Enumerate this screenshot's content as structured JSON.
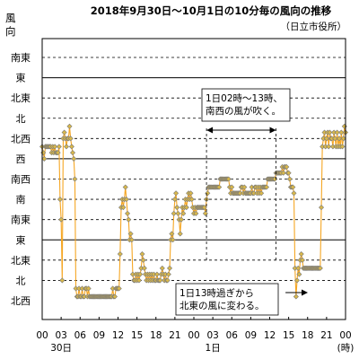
{
  "chart_data": {
    "type": "line",
    "title": "2018年9月30日～10月1日の10分毎の風向の推移",
    "subtitle": "（日立市役所）",
    "ylabel": "風向",
    "xlabel": "(時)",
    "categories": [
      "北西",
      "北",
      "北東",
      "東",
      "南東",
      "南",
      "南西",
      "西",
      "北西",
      "北",
      "北東",
      "東",
      "南東"
    ],
    "x_tick_labels": [
      "00",
      "03",
      "06",
      "09",
      "12",
      "15",
      "18",
      "21",
      "00",
      "03",
      "06",
      "09",
      "12",
      "15",
      "18",
      "21",
      "00"
    ],
    "x_day_labels": [
      {
        "label": "30日",
        "x": 3
      },
      {
        "label": "1日",
        "x": 27
      }
    ],
    "x_range": [
      0,
      48
    ],
    "x_unit_note": "x = hours from 2018-09-30 00:00; y = direction index 0 (北西, bottom) … 12 (南東, top), fractional = intermediate direction",
    "solid_gridlines_at": [
      3,
      7,
      11
    ],
    "dashed_gridlines_at": [
      1,
      2,
      4,
      5,
      6,
      8,
      9,
      10,
      12
    ],
    "series": [
      {
        "name": "風向",
        "color": "#f5a623",
        "marker_fill": "#d9b84a",
        "marker_stroke": "#7a7a7a",
        "points": [
          [
            0,
            7.6
          ],
          [
            0.17,
            7.3
          ],
          [
            0.33,
            7.0
          ],
          [
            0.5,
            7.6
          ],
          [
            0.67,
            7.6
          ],
          [
            0.83,
            7.6
          ],
          [
            1,
            7.6
          ],
          [
            1.17,
            7.6
          ],
          [
            1.33,
            7.6
          ],
          [
            1.5,
            7.3
          ],
          [
            1.67,
            7.6
          ],
          [
            1.83,
            7.3
          ],
          [
            2,
            7.6
          ],
          [
            2.17,
            7.3
          ],
          [
            2.33,
            7.3
          ],
          [
            2.5,
            7.3
          ],
          [
            2.67,
            7.6
          ],
          [
            2.83,
            5.0
          ],
          [
            3,
            4.0
          ],
          [
            3.17,
            1.0
          ],
          [
            3.33,
            8.0
          ],
          [
            3.5,
            8.3
          ],
          [
            3.67,
            8.0
          ],
          [
            3.83,
            7.6
          ],
          [
            4,
            8.0
          ],
          [
            4.17,
            8.0
          ],
          [
            4.33,
            8.6
          ],
          [
            4.5,
            8.0
          ],
          [
            4.67,
            7.6
          ],
          [
            4.83,
            7.3
          ],
          [
            5,
            7.0
          ],
          [
            5.17,
            6.0
          ],
          [
            5.33,
            0.6
          ],
          [
            5.5,
            0.2
          ],
          [
            5.67,
            0.2
          ],
          [
            5.83,
            0.6
          ],
          [
            6,
            0.2
          ],
          [
            6.17,
            0.2
          ],
          [
            6.33,
            0.6
          ],
          [
            6.5,
            0.2
          ],
          [
            6.67,
            0.2
          ],
          [
            6.83,
            0.6
          ],
          [
            7,
            0.6
          ],
          [
            7.17,
            0.2
          ],
          [
            7.33,
            0.6
          ],
          [
            7.5,
            0.2
          ],
          [
            7.67,
            0.2
          ],
          [
            7.83,
            0.2
          ],
          [
            8,
            0.2
          ],
          [
            8.17,
            0.2
          ],
          [
            8.33,
            0.2
          ],
          [
            8.5,
            0.2
          ],
          [
            8.67,
            0.2
          ],
          [
            8.83,
            0.2
          ],
          [
            9,
            0.2
          ],
          [
            9.17,
            0.2
          ],
          [
            9.33,
            0.2
          ],
          [
            9.5,
            0.2
          ],
          [
            9.67,
            0.2
          ],
          [
            9.83,
            0.2
          ],
          [
            10,
            0.2
          ],
          [
            10.17,
            0.2
          ],
          [
            10.33,
            0.2
          ],
          [
            10.5,
            0.2
          ],
          [
            10.67,
            0.2
          ],
          [
            10.83,
            0.2
          ],
          [
            11,
            0.2
          ],
          [
            11.17,
            0.6
          ],
          [
            11.33,
            0.2
          ],
          [
            11.5,
            0.2
          ],
          [
            11.67,
            0.6
          ],
          [
            11.83,
            0.6
          ],
          [
            12,
            0.6
          ],
          [
            12.17,
            0.6
          ],
          [
            12.33,
            2.3
          ],
          [
            12.5,
            4.6
          ],
          [
            12.67,
            5.0
          ],
          [
            12.83,
            4.6
          ],
          [
            13,
            5.0
          ],
          [
            13.17,
            5.6
          ],
          [
            13.33,
            5.0
          ],
          [
            13.5,
            4.3
          ],
          [
            13.67,
            4.0
          ],
          [
            13.83,
            3.0
          ],
          [
            14,
            3.3
          ],
          [
            14.17,
            3.0
          ],
          [
            14.33,
            1.3
          ],
          [
            14.5,
            1.0
          ],
          [
            14.67,
            1.0
          ],
          [
            14.83,
            1.3
          ],
          [
            15,
            1.0
          ],
          [
            15.17,
            1.3
          ],
          [
            15.33,
            1.0
          ],
          [
            15.5,
            1.3
          ],
          [
            15.67,
            1.6
          ],
          [
            15.83,
            2.3
          ],
          [
            16,
            2.0
          ],
          [
            16.17,
            1.6
          ],
          [
            16.33,
            1.3
          ],
          [
            16.5,
            1.0
          ],
          [
            16.67,
            1.3
          ],
          [
            16.83,
            1.0
          ],
          [
            17,
            1.3
          ],
          [
            17.17,
            1.0
          ],
          [
            17.33,
            1.3
          ],
          [
            17.5,
            1.0
          ],
          [
            17.67,
            1.3
          ],
          [
            17.83,
            1.0
          ],
          [
            18,
            1.0
          ],
          [
            18.17,
            1.3
          ],
          [
            18.33,
            1.0
          ],
          [
            18.5,
            1.0
          ],
          [
            18.67,
            1.0
          ],
          [
            18.83,
            1.3
          ],
          [
            19,
            1.6
          ],
          [
            19.17,
            1.3
          ],
          [
            19.33,
            1.0
          ],
          [
            19.5,
            1.3
          ],
          [
            19.67,
            1.0
          ],
          [
            19.83,
            1.0
          ],
          [
            20,
            1.3
          ],
          [
            20.17,
            1.6
          ],
          [
            20.33,
            3.0
          ],
          [
            20.5,
            3.3
          ],
          [
            20.67,
            3.0
          ],
          [
            20.83,
            4.3
          ],
          [
            21,
            5.0
          ],
          [
            21.17,
            5.3
          ],
          [
            21.33,
            4.6
          ],
          [
            21.5,
            4.3
          ],
          [
            21.67,
            4.0
          ],
          [
            21.83,
            3.3
          ],
          [
            22,
            4.0
          ],
          [
            22.17,
            4.6
          ],
          [
            22.33,
            4.3
          ],
          [
            22.5,
            4.6
          ],
          [
            22.67,
            5.0
          ],
          [
            22.83,
            4.6
          ],
          [
            23,
            5.0
          ],
          [
            23.17,
            5.3
          ],
          [
            23.33,
            5.0
          ],
          [
            23.5,
            5.3
          ],
          [
            23.67,
            5.0
          ],
          [
            23.83,
            4.6
          ],
          [
            24,
            4.3
          ],
          [
            24.17,
            4.6
          ],
          [
            24.33,
            4.3
          ],
          [
            24.5,
            4.6
          ],
          [
            24.67,
            4.6
          ],
          [
            24.83,
            4.6
          ],
          [
            25,
            4.6
          ],
          [
            25.17,
            4.6
          ],
          [
            25.33,
            4.6
          ],
          [
            25.5,
            4.6
          ],
          [
            25.67,
            4.6
          ],
          [
            25.83,
            4.3
          ],
          [
            26,
            5.0
          ],
          [
            26.17,
            5.3
          ],
          [
            26.33,
            5.6
          ],
          [
            26.5,
            5.6
          ],
          [
            26.67,
            5.6
          ],
          [
            26.83,
            5.6
          ],
          [
            27,
            5.6
          ],
          [
            27.17,
            5.6
          ],
          [
            27.33,
            5.6
          ],
          [
            27.5,
            5.6
          ],
          [
            27.67,
            5.6
          ],
          [
            27.83,
            5.6
          ],
          [
            28,
            5.6
          ],
          [
            28.17,
            6.0
          ],
          [
            28.33,
            6.0
          ],
          [
            28.5,
            6.0
          ],
          [
            28.67,
            6.0
          ],
          [
            28.83,
            6.0
          ],
          [
            29,
            6.0
          ],
          [
            29.17,
            6.0
          ],
          [
            29.33,
            6.0
          ],
          [
            29.5,
            6.0
          ],
          [
            29.67,
            5.6
          ],
          [
            29.83,
            5.3
          ],
          [
            30,
            5.6
          ],
          [
            30.17,
            5.3
          ],
          [
            30.33,
            5.3
          ],
          [
            30.5,
            5.3
          ],
          [
            30.67,
            5.3
          ],
          [
            30.83,
            5.3
          ],
          [
            31,
            5.3
          ],
          [
            31.17,
            5.3
          ],
          [
            31.33,
            5.3
          ],
          [
            31.5,
            5.6
          ],
          [
            31.67,
            5.6
          ],
          [
            31.83,
            5.3
          ],
          [
            32,
            5.6
          ],
          [
            32.17,
            5.3
          ],
          [
            32.33,
            5.3
          ],
          [
            32.5,
            5.3
          ],
          [
            32.67,
            5.3
          ],
          [
            32.83,
            5.3
          ],
          [
            33,
            5.3
          ],
          [
            33.17,
            5.6
          ],
          [
            33.33,
            5.3
          ],
          [
            33.5,
            5.3
          ],
          [
            33.67,
            5.6
          ],
          [
            33.83,
            5.6
          ],
          [
            34,
            5.3
          ],
          [
            34.17,
            5.6
          ],
          [
            34.33,
            5.3
          ],
          [
            34.5,
            5.6
          ],
          [
            34.67,
            5.3
          ],
          [
            34.83,
            5.6
          ],
          [
            35,
            5.6
          ],
          [
            35.17,
            5.6
          ],
          [
            35.33,
            5.6
          ],
          [
            35.5,
            5.6
          ],
          [
            35.67,
            6.0
          ],
          [
            35.83,
            6.0
          ],
          [
            36,
            6.0
          ],
          [
            36.17,
            6.0
          ],
          [
            36.33,
            6.0
          ],
          [
            36.5,
            6.0
          ],
          [
            36.67,
            6.0
          ],
          [
            36.83,
            6.0
          ],
          [
            37,
            6.3
          ],
          [
            37.17,
            6.3
          ],
          [
            37.33,
            6.3
          ],
          [
            37.5,
            6.3
          ],
          [
            37.67,
            6.3
          ],
          [
            37.83,
            6.3
          ],
          [
            38,
            6.6
          ],
          [
            38.17,
            6.3
          ],
          [
            38.33,
            6.6
          ],
          [
            38.5,
            6.6
          ],
          [
            38.67,
            6.6
          ],
          [
            38.83,
            6.3
          ],
          [
            39,
            6.3
          ],
          [
            39.17,
            6.0
          ],
          [
            39.33,
            5.6
          ],
          [
            39.5,
            5.6
          ],
          [
            39.67,
            5.6
          ],
          [
            39.83,
            5.3
          ],
          [
            40,
            1.6
          ],
          [
            40.17,
            0.2
          ],
          [
            40.33,
            1.0
          ],
          [
            40.5,
            1.6
          ],
          [
            40.67,
            1.3
          ],
          [
            40.83,
            2.0
          ],
          [
            41,
            2.3
          ],
          [
            41.17,
            2.0
          ],
          [
            41.33,
            1.6
          ],
          [
            41.5,
            1.6
          ],
          [
            41.67,
            1.6
          ],
          [
            41.83,
            1.6
          ],
          [
            42,
            1.6
          ],
          [
            42.17,
            1.6
          ],
          [
            42.33,
            1.6
          ],
          [
            42.5,
            1.6
          ],
          [
            42.67,
            1.6
          ],
          [
            42.83,
            1.6
          ],
          [
            43,
            1.6
          ],
          [
            43.17,
            1.6
          ],
          [
            43.33,
            1.6
          ],
          [
            43.5,
            1.6
          ],
          [
            43.67,
            1.6
          ],
          [
            43.83,
            1.6
          ],
          [
            44,
            1.6
          ],
          [
            44.17,
            4.6
          ],
          [
            44.33,
            7.6
          ],
          [
            44.5,
            8.0
          ],
          [
            44.67,
            8.3
          ],
          [
            44.83,
            7.6
          ],
          [
            45,
            8.0
          ],
          [
            45.17,
            8.3
          ],
          [
            45.33,
            7.6
          ],
          [
            45.5,
            8.3
          ],
          [
            45.67,
            8.0
          ],
          [
            45.83,
            8.0
          ],
          [
            46,
            7.6
          ],
          [
            46.17,
            8.3
          ],
          [
            46.33,
            8.0
          ],
          [
            46.5,
            7.6
          ],
          [
            46.67,
            8.3
          ],
          [
            46.83,
            7.6
          ],
          [
            47,
            8.0
          ],
          [
            47.17,
            7.6
          ],
          [
            47.33,
            8.3
          ],
          [
            47.5,
            7.6
          ],
          [
            47.67,
            8.0
          ],
          [
            47.83,
            8.6
          ],
          [
            48,
            8.3
          ]
        ]
      }
    ],
    "annotations": [
      {
        "text_lines": [
          "1日02時～13時、",
          "南西の風が吹く。"
        ],
        "x_from": 26,
        "x_to": 37
      },
      {
        "text_lines": [
          "1日13時過ぎから",
          "北東の風に変わる。"
        ],
        "x_from": 38.5,
        "x_to": 39.5
      }
    ]
  }
}
